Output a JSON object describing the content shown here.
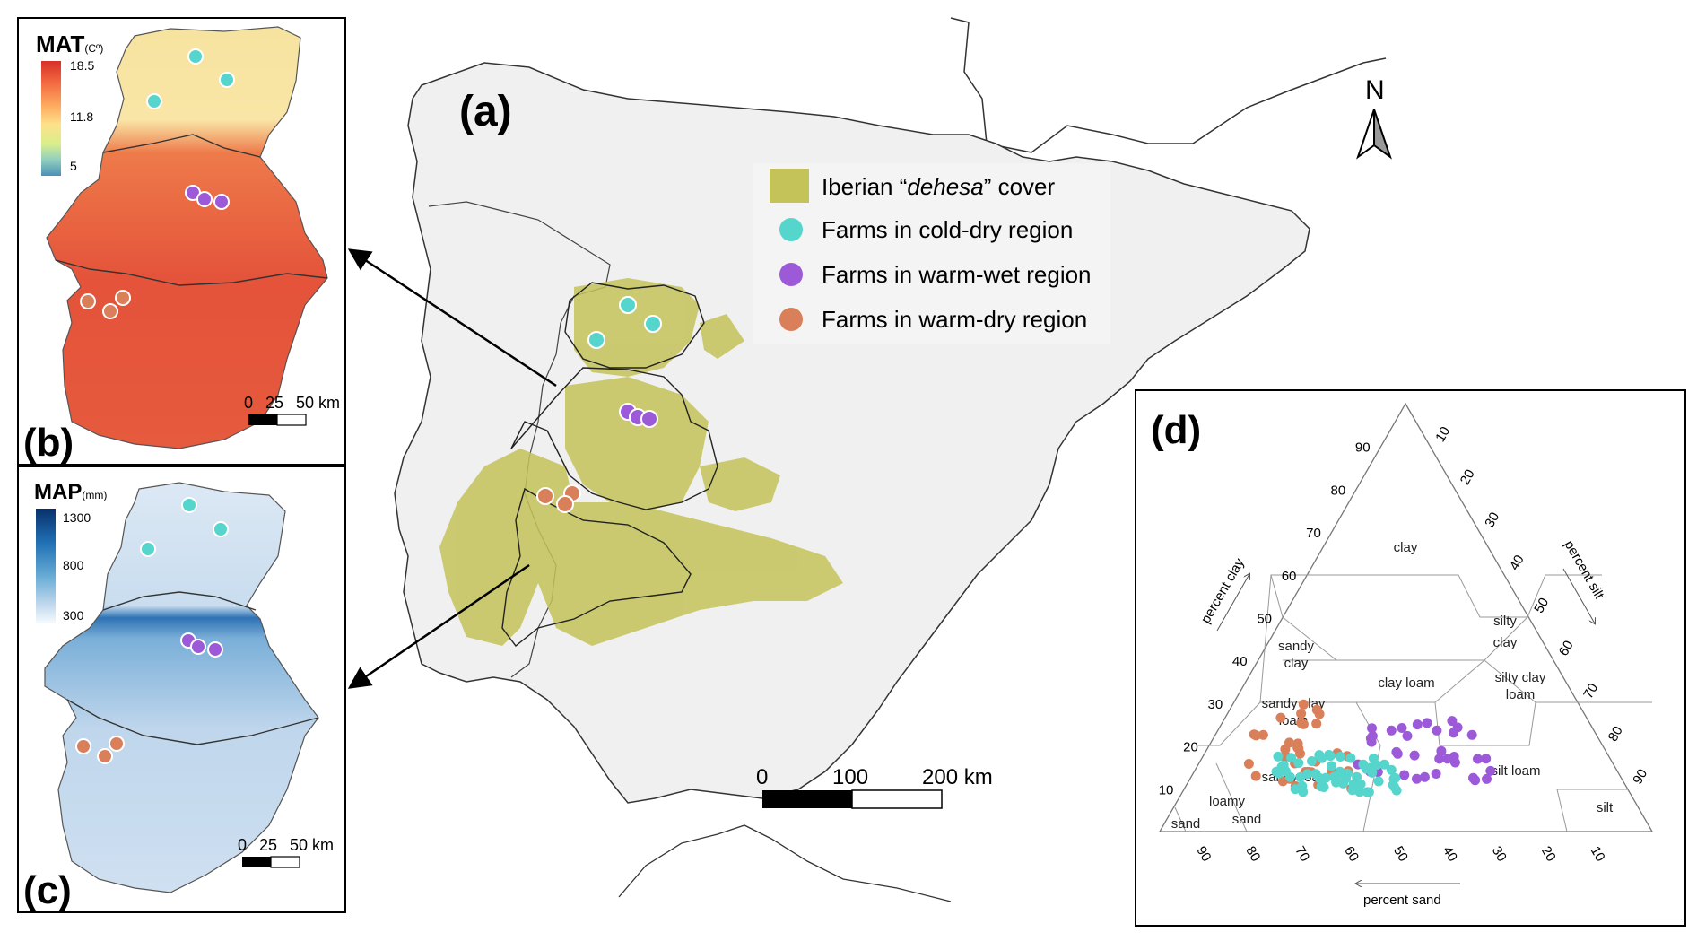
{
  "panels": {
    "a": {
      "label": "(a)"
    },
    "b": {
      "label": "(b)"
    },
    "c": {
      "label": "(c)"
    },
    "d": {
      "label": "(d)"
    }
  },
  "north_arrow": {
    "label": "N"
  },
  "legend": {
    "items": [
      {
        "key": "dehesa",
        "text_pre": "Iberian “",
        "text_em": "dehesa",
        "text_post": "” cover",
        "color": "#c4c35a",
        "symbol": "square"
      },
      {
        "key": "cold_dry",
        "text": "Farms in cold-dry region",
        "color": "#56d5cc",
        "symbol": "circle"
      },
      {
        "key": "warm_wet",
        "text": "Farms in warm-wet region",
        "color": "#9d5ad8",
        "symbol": "circle"
      },
      {
        "key": "warm_dry",
        "text": "Farms in warm-dry region",
        "color": "#d97f5a",
        "symbol": "circle"
      }
    ]
  },
  "scalebar_main": {
    "ticks": [
      "0",
      "100",
      "200 km"
    ]
  },
  "mat_map": {
    "title": "MAT",
    "unit": "(Cº)",
    "colorbar_ticks": [
      "18.5",
      "11.8",
      "5"
    ],
    "colors": [
      "#d73027",
      "#f46d43",
      "#fdae61",
      "#fee08b",
      "#d9ef8b",
      "#91cfbf",
      "#4a90b8"
    ],
    "scalebar_ticks": [
      "0",
      "25",
      "50 km"
    ]
  },
  "map_map": {
    "title": "MAP",
    "unit": "(mm)",
    "colorbar_ticks": [
      "1300",
      "800",
      "300"
    ],
    "colors": [
      "#08306b",
      "#2171b5",
      "#6baed6",
      "#c6dbef",
      "#f7fbff"
    ],
    "scalebar_ticks": [
      "0",
      "25",
      "50 km"
    ]
  },
  "soil_triangle": {
    "axis_titles": {
      "clay": "percent clay",
      "silt": "percent silt",
      "sand": "percent sand"
    },
    "clay_ticks": [
      "10",
      "20",
      "30",
      "40",
      "50",
      "60",
      "70",
      "80",
      "90"
    ],
    "silt_ticks": [
      "10",
      "20",
      "30",
      "40",
      "50",
      "60",
      "70",
      "80",
      "90"
    ],
    "sand_ticks": [
      "90",
      "80",
      "70",
      "60",
      "50",
      "40",
      "30",
      "20",
      "10"
    ],
    "classes": [
      {
        "name": "clay",
        "lines": [
          "clay"
        ]
      },
      {
        "name": "silty clay",
        "lines": [
          "silty",
          "clay"
        ]
      },
      {
        "name": "sandy clay",
        "lines": [
          "sandy",
          "clay"
        ]
      },
      {
        "name": "clay loam",
        "lines": [
          "clay loam"
        ]
      },
      {
        "name": "silty clay loam",
        "lines": [
          "silty clay",
          "loam"
        ]
      },
      {
        "name": "sandy clay loam",
        "lines": [
          "sandy clay",
          "loam"
        ]
      },
      {
        "name": "sandy loam",
        "lines": [
          "sandy loam"
        ]
      },
      {
        "name": "silt loam",
        "lines": [
          "silt loam"
        ]
      },
      {
        "name": "loamy sand",
        "lines": [
          "loamy",
          "sand"
        ]
      },
      {
        "name": "sand",
        "lines": [
          "sand"
        ]
      },
      {
        "name": "silt",
        "lines": [
          "silt"
        ]
      }
    ]
  }
}
